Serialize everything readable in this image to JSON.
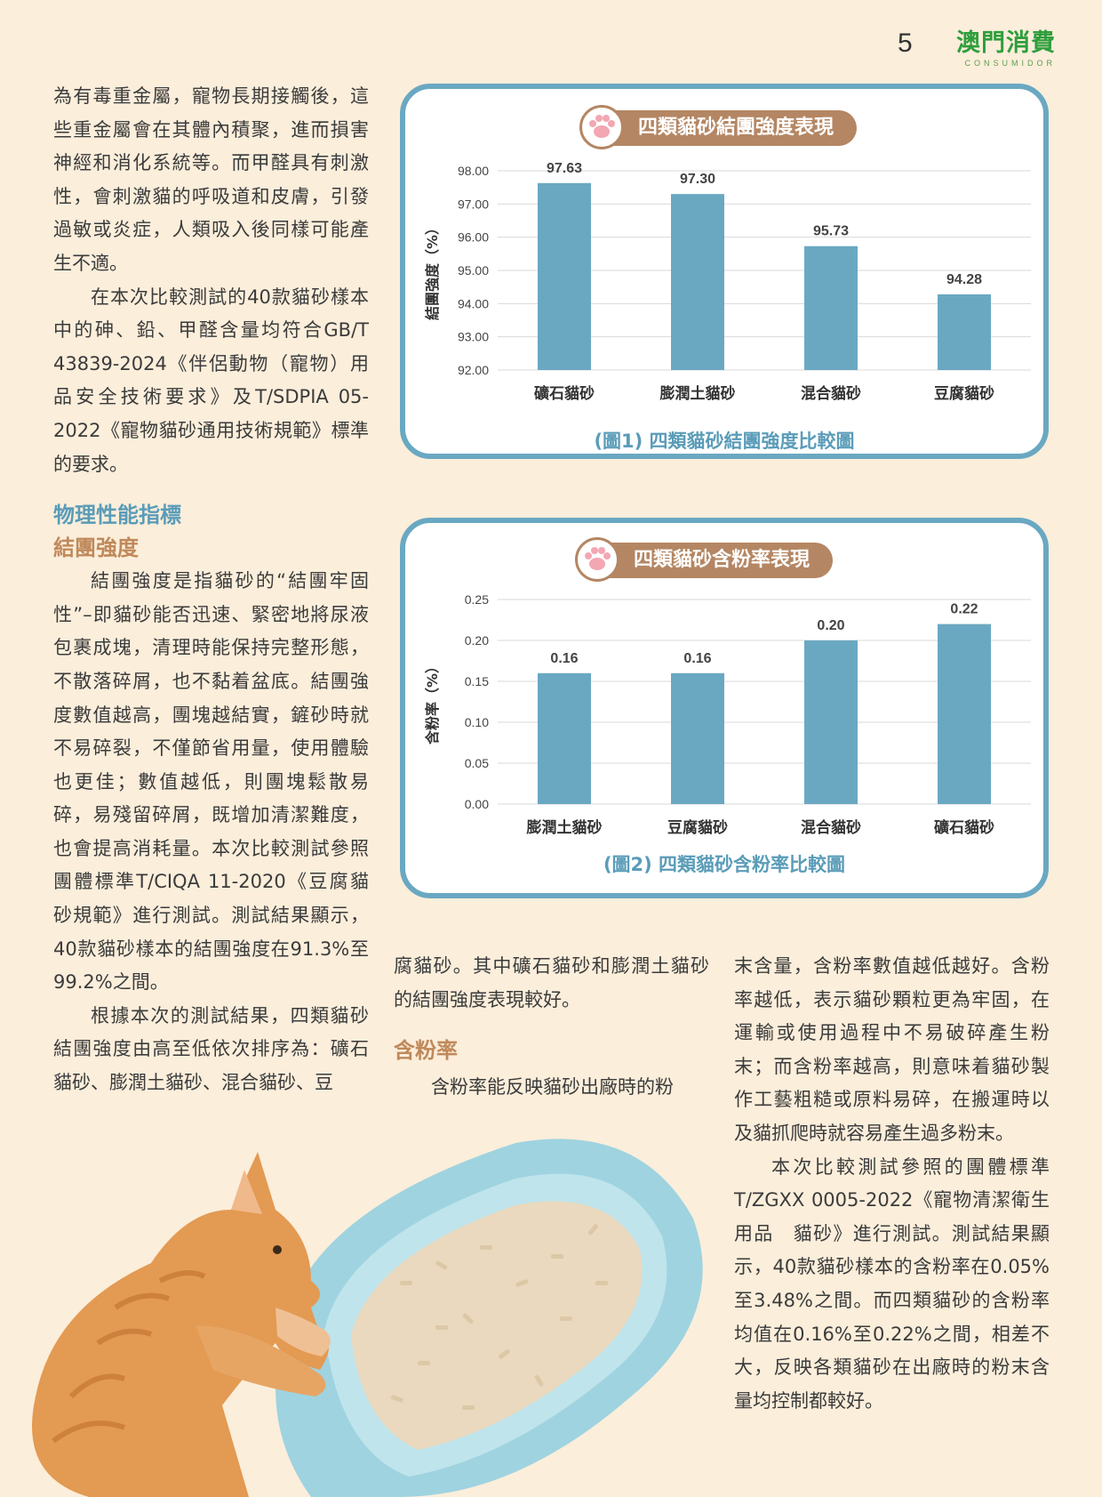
{
  "header": {
    "page_number": "5",
    "brand_name": "澳門消費",
    "brand_sub": "CONSUMIDOR"
  },
  "col1": {
    "p1": "為有毒重金屬，寵物長期接觸後，這些重金屬會在其體內積聚，進而損害神經和消化系統等。而甲醛具有刺激性，會刺激貓的呼吸道和皮膚，引發過敏或炎症，人類吸入後同樣可能產生不適。",
    "p2": "在本次比較測試的40款貓砂樣本中的砷、鉛、甲醛含量均符合GB/T 43839-2024《伴侶動物（寵物）用品安全技術要求》及T/SDPIA 05-2022《寵物貓砂通用技術規範》標準的要求。",
    "heading_section": "物理性能指標",
    "heading_sub": "結團強度",
    "p3": "結團強度是指貓砂的“結團牢固性”–即貓砂能否迅速、緊密地將尿液包裹成塊，清理時能保持完整形態，不散落碎屑，也不黏着盆底。結團強度數值越高，團塊越結實，鏟砂時就不易碎裂，不僅節省用量，使用體驗也更佳；數值越低，則團塊鬆散易碎，易殘留碎屑，既增加清潔難度，也會提高消耗量。本次比較測試參照團體標準T/CIQA 11-2020《豆腐貓砂規範》進行測試。測試結果顯示，40款貓砂樣本的結團強度在91.3%至99.2%之間。",
    "p4": "根據本次的測試結果，四類貓砂結團強度由高至低依次排序為：礦石貓砂、膨潤土貓砂、混合貓砂、豆"
  },
  "col2": {
    "p1": "腐貓砂。其中礦石貓砂和膨潤土貓砂的結團強度表現較好。",
    "heading": "含粉率",
    "p2": "含粉率能反映貓砂出廠時的粉"
  },
  "col3": {
    "p1": "末含量，含粉率數值越低越好。含粉率越低，表示貓砂顆粒更為牢固，在運輸或使用過程中不易破碎產生粉末；而含粉率越高，則意味着貓砂製作工藝粗糙或原料易碎，在搬運時以及貓抓爬時就容易產生過多粉末。",
    "p2": "本次比較測試參照的團體標準T/ZGXX 0005-2022《寵物清潔衛生用品　貓砂》進行測試。測試結果顯示，40款貓砂樣本的含粉率在0.05%至3.48%之間。而四類貓砂的含粉率均值在0.16%至0.22%之間，相差不大，反映各類貓砂在出廠時的粉末含量均控制都較好。"
  },
  "chart1_meta": {
    "title": "四類貓砂結團強度表現",
    "caption": "(圖1)  四類貓砂結團強度比較圖"
  },
  "chart2_meta": {
    "title": "四類貓砂含粉率表現",
    "caption": "(圖2)  四類貓砂含粉率比較圖"
  },
  "chart_data": [
    {
      "type": "bar",
      "title": "四類貓砂結團強度表現",
      "ylabel": "結團強度（%）",
      "xlabel": "",
      "categories": [
        "礦石貓砂",
        "膨潤土貓砂",
        "混合貓砂",
        "豆腐貓砂"
      ],
      "values": [
        97.63,
        97.3,
        95.73,
        94.28
      ],
      "value_labels": [
        "97.63",
        "97.30",
        "95.73",
        "94.28"
      ],
      "ylim": [
        92,
        98
      ],
      "yticks": [
        "92.00",
        "93.00",
        "94.00",
        "95.00",
        "96.00",
        "97.00",
        "98.00"
      ],
      "grid": true,
      "bar_color": "#6aa8c2"
    },
    {
      "type": "bar",
      "title": "四類貓砂含粉率表現",
      "ylabel": "含粉率（%）",
      "xlabel": "",
      "categories": [
        "膨潤土貓砂",
        "豆腐貓砂",
        "混合貓砂",
        "礦石貓砂"
      ],
      "values": [
        0.16,
        0.16,
        0.2,
        0.22
      ],
      "value_labels": [
        "0.16",
        "0.16",
        "0.20",
        "0.22"
      ],
      "ylim": [
        0,
        0.25
      ],
      "yticks": [
        "0.00",
        "0.05",
        "0.10",
        "0.15",
        "0.20",
        "0.25"
      ],
      "grid": true,
      "bar_color": "#6aa8c2"
    }
  ],
  "illustration": {
    "icon": "cat-with-litter-box-illustration"
  }
}
